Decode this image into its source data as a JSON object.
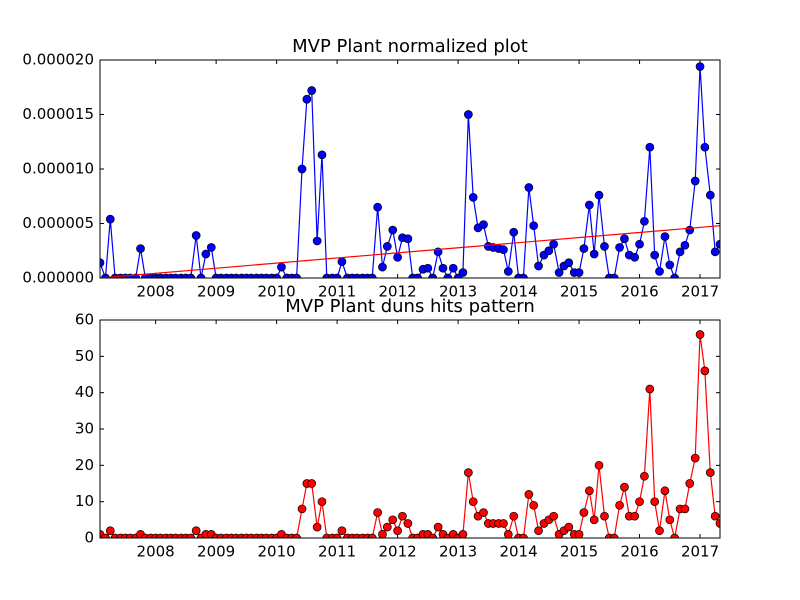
{
  "chart_data": [
    {
      "type": "line",
      "title": "MVP Plant normalized plot",
      "x": [
        2007.08,
        2007.17,
        2007.25,
        2007.33,
        2007.42,
        2007.5,
        2007.58,
        2007.67,
        2007.75,
        2007.83,
        2007.92,
        2008,
        2008.08,
        2008.17,
        2008.25,
        2008.33,
        2008.42,
        2008.5,
        2008.58,
        2008.67,
        2008.75,
        2008.83,
        2008.92,
        2009,
        2009.08,
        2009.17,
        2009.25,
        2009.33,
        2009.42,
        2009.5,
        2009.58,
        2009.67,
        2009.75,
        2009.83,
        2009.92,
        2010,
        2010.08,
        2010.17,
        2010.25,
        2010.33,
        2010.42,
        2010.5,
        2010.58,
        2010.67,
        2010.75,
        2010.83,
        2010.92,
        2011,
        2011.08,
        2011.17,
        2011.25,
        2011.33,
        2011.42,
        2011.5,
        2011.58,
        2011.67,
        2011.75,
        2011.83,
        2011.92,
        2012,
        2012.08,
        2012.17,
        2012.25,
        2012.33,
        2012.42,
        2012.5,
        2012.58,
        2012.67,
        2012.75,
        2012.83,
        2012.92,
        2013,
        2013.08,
        2013.17,
        2013.25,
        2013.33,
        2013.42,
        2013.5,
        2013.58,
        2013.67,
        2013.75,
        2013.83,
        2013.92,
        2014,
        2014.08,
        2014.17,
        2014.25,
        2014.33,
        2014.42,
        2014.5,
        2014.58,
        2014.67,
        2014.75,
        2014.83,
        2014.92,
        2015,
        2015.08,
        2015.17,
        2015.25,
        2015.33,
        2015.42,
        2015.5,
        2015.58,
        2015.67,
        2015.75,
        2015.83,
        2015.92,
        2016,
        2016.08,
        2016.17,
        2016.25,
        2016.33,
        2016.42,
        2016.5,
        2016.58,
        2016.67,
        2016.75,
        2016.83,
        2016.92,
        2017,
        2017.08,
        2017.17,
        2017.25,
        2017.33
      ],
      "series": [
        {
          "color": "#0000ff",
          "marker": true,
          "values": [
            1.4e-06,
            0,
            5.4e-06,
            0,
            0,
            0,
            0,
            0,
            2.7e-06,
            0,
            0,
            0,
            0,
            0,
            0,
            0,
            0,
            0,
            0,
            3.9e-06,
            0,
            2.2e-06,
            2.8e-06,
            0,
            0,
            0,
            0,
            0,
            0,
            0,
            0,
            0,
            0,
            0,
            0,
            0,
            1e-06,
            0,
            0,
            0,
            1e-05,
            1.64e-05,
            1.72e-05,
            3.4e-06,
            1.13e-05,
            0,
            0,
            0,
            1.5e-06,
            0,
            0,
            0,
            0,
            0,
            0,
            6.5e-06,
            1e-06,
            2.9e-06,
            4.4e-06,
            1.9e-06,
            3.7e-06,
            3.6e-06,
            0,
            0,
            8e-07,
            9e-07,
            0,
            2.4e-06,
            9e-07,
            0,
            9e-07,
            0,
            5e-07,
            1.5e-05,
            7.4e-06,
            4.6e-06,
            4.9e-06,
            2.9e-06,
            2.8e-06,
            2.7e-06,
            2.6e-06,
            6e-07,
            4.2e-06,
            0,
            0,
            8.3e-06,
            4.8e-06,
            1.1e-06,
            2.1e-06,
            2.5e-06,
            3.1e-06,
            5e-07,
            1.1e-06,
            1.4e-06,
            5e-07,
            5e-07,
            2.7e-06,
            6.7e-06,
            2.2e-06,
            7.6e-06,
            2.9e-06,
            0,
            0,
            2.8e-06,
            3.6e-06,
            2.1e-06,
            1.9e-06,
            3.1e-06,
            5.2e-06,
            1.2e-05,
            2.1e-06,
            6e-07,
            3.8e-06,
            1.2e-06,
            0,
            2.4e-06,
            3e-06,
            4.4e-06,
            8.9e-06,
            1.94e-05,
            1.2e-05,
            7.6e-06,
            2.4e-06,
            3.1e-06
          ]
        },
        {
          "color": "#ff0000",
          "marker": false,
          "x": [
            2007.08,
            2017.33
          ],
          "values": [
            0,
            4.8e-06
          ]
        }
      ],
      "xlim": [
        2007.08,
        2017.33
      ],
      "ylim": [
        0,
        2e-05
      ],
      "xticks": [
        2008,
        2009,
        2010,
        2011,
        2012,
        2013,
        2014,
        2015,
        2016,
        2017
      ],
      "yticks": [
        {
          "value": 0,
          "label": "0.000000"
        },
        {
          "value": 5e-06,
          "label": "0.000005"
        },
        {
          "value": 1e-05,
          "label": "0.000010"
        },
        {
          "value": 1.5e-05,
          "label": "0.000015"
        },
        {
          "value": 2e-05,
          "label": "0.000020"
        }
      ]
    },
    {
      "type": "line",
      "title": "MVP Plant duns hits pattern",
      "x": [
        2007.08,
        2007.17,
        2007.25,
        2007.33,
        2007.42,
        2007.5,
        2007.58,
        2007.67,
        2007.75,
        2007.83,
        2007.92,
        2008,
        2008.08,
        2008.17,
        2008.25,
        2008.33,
        2008.42,
        2008.5,
        2008.58,
        2008.67,
        2008.75,
        2008.83,
        2008.92,
        2009,
        2009.08,
        2009.17,
        2009.25,
        2009.33,
        2009.42,
        2009.5,
        2009.58,
        2009.67,
        2009.75,
        2009.83,
        2009.92,
        2010,
        2010.08,
        2010.17,
        2010.25,
        2010.33,
        2010.42,
        2010.5,
        2010.58,
        2010.67,
        2010.75,
        2010.83,
        2010.92,
        2011,
        2011.08,
        2011.17,
        2011.25,
        2011.33,
        2011.42,
        2011.5,
        2011.58,
        2011.67,
        2011.75,
        2011.83,
        2011.92,
        2012,
        2012.08,
        2012.17,
        2012.25,
        2012.33,
        2012.42,
        2012.5,
        2012.58,
        2012.67,
        2012.75,
        2012.83,
        2012.92,
        2013,
        2013.08,
        2013.17,
        2013.25,
        2013.33,
        2013.42,
        2013.5,
        2013.58,
        2013.67,
        2013.75,
        2013.83,
        2013.92,
        2014,
        2014.08,
        2014.17,
        2014.25,
        2014.33,
        2014.42,
        2014.5,
        2014.58,
        2014.67,
        2014.75,
        2014.83,
        2014.92,
        2015,
        2015.08,
        2015.17,
        2015.25,
        2015.33,
        2015.42,
        2015.5,
        2015.58,
        2015.67,
        2015.75,
        2015.83,
        2015.92,
        2016,
        2016.08,
        2016.17,
        2016.25,
        2016.33,
        2016.42,
        2016.5,
        2016.58,
        2016.67,
        2016.75,
        2016.83,
        2016.92,
        2017,
        2017.08,
        2017.17,
        2017.25,
        2017.33
      ],
      "series": [
        {
          "color": "#ff0000",
          "marker": true,
          "values": [
            1,
            0,
            2,
            0,
            0,
            0,
            0,
            0,
            1,
            0,
            0,
            0,
            0,
            0,
            0,
            0,
            0,
            0,
            0,
            2,
            0,
            1,
            1,
            0,
            0,
            0,
            0,
            0,
            0,
            0,
            0,
            0,
            0,
            0,
            0,
            0,
            1,
            0,
            0,
            0,
            8,
            15,
            15,
            3,
            10,
            0,
            0,
            0,
            2,
            0,
            0,
            0,
            0,
            0,
            0,
            7,
            1,
            3,
            5,
            2,
            6,
            4,
            0,
            0,
            1,
            1,
            0,
            3,
            1,
            0,
            1,
            0,
            1,
            18,
            10,
            6,
            7,
            4,
            4,
            4,
            4,
            1,
            6,
            0,
            0,
            12,
            9,
            2,
            4,
            5,
            6,
            1,
            2,
            3,
            1,
            1,
            7,
            13,
            5,
            20,
            6,
            0,
            0,
            9,
            14,
            6,
            6,
            10,
            17,
            41,
            10,
            2,
            13,
            5,
            0,
            8,
            8,
            15,
            22,
            56,
            46,
            18,
            6,
            4
          ]
        }
      ],
      "xlim": [
        2007.08,
        2017.33
      ],
      "ylim": [
        0,
        60
      ],
      "xticks": [
        2008,
        2009,
        2010,
        2011,
        2012,
        2013,
        2014,
        2015,
        2016,
        2017
      ],
      "yticks": [
        0,
        10,
        20,
        30,
        40,
        50,
        60
      ]
    }
  ]
}
